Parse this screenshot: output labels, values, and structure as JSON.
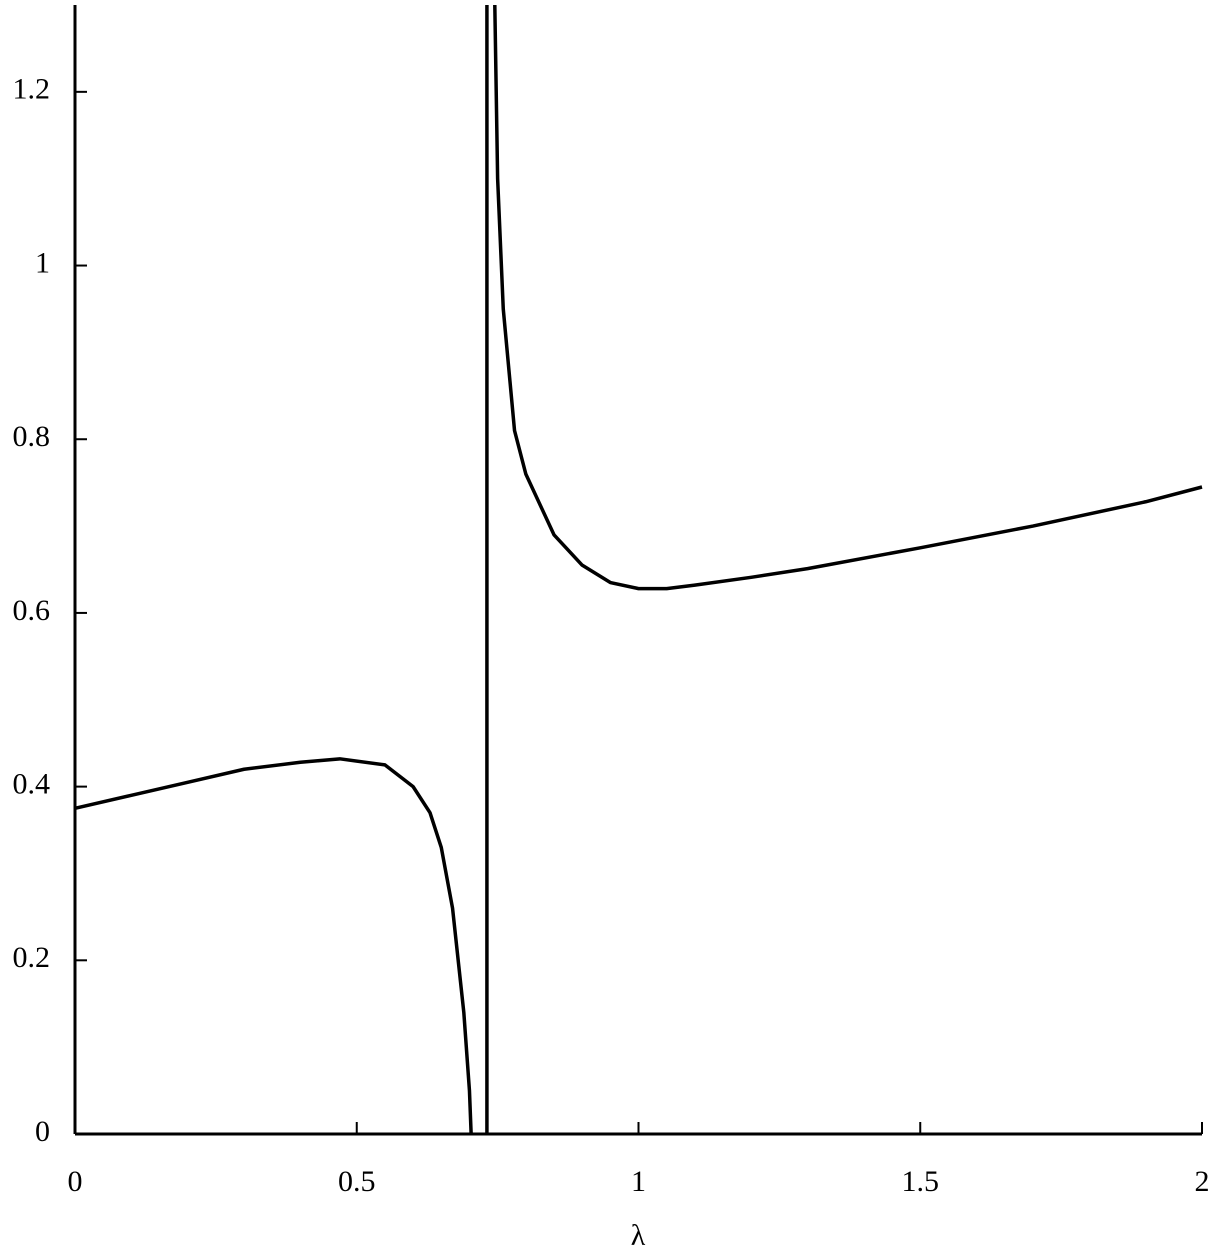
{
  "chart_data": {
    "type": "line",
    "x_label": "λ",
    "xlim": [
      0,
      2
    ],
    "ylim": [
      0,
      1.3
    ],
    "xticks": [
      0,
      0.5,
      1,
      1.5,
      2
    ],
    "yticks": [
      0,
      0.2,
      0.4,
      0.6,
      0.8,
      1,
      1.2
    ],
    "grid": false,
    "series": [
      {
        "color": "#000000",
        "x": [
          0,
          0.1,
          0.2,
          0.3,
          0.4,
          0.47,
          0.55,
          0.6,
          0.63,
          0.65,
          0.67,
          0.69,
          0.7,
          0.703
        ],
        "values": [
          0.375,
          0.39,
          0.405,
          0.42,
          0.428,
          0.432,
          0.425,
          0.4,
          0.37,
          0.33,
          0.26,
          0.14,
          0.05,
          0
        ]
      },
      {
        "color": "#000000",
        "x": [
          0.731,
          0.731
        ],
        "values": [
          0,
          1.3
        ]
      },
      {
        "color": "#000000",
        "x": [
          0.745,
          0.75,
          0.76,
          0.78,
          0.8,
          0.85,
          0.9,
          0.95,
          1.0,
          1.05,
          1.1,
          1.2,
          1.3,
          1.5,
          1.7,
          1.9,
          2.0
        ],
        "values": [
          1.3,
          1.1,
          0.95,
          0.81,
          0.76,
          0.69,
          0.655,
          0.635,
          0.628,
          0.628,
          0.632,
          0.641,
          0.651,
          0.675,
          0.7,
          0.728,
          0.745
        ]
      }
    ]
  }
}
